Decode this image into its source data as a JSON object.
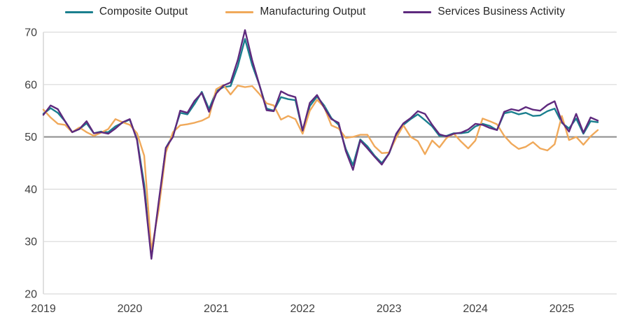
{
  "chart_data": {
    "type": "line",
    "title": "",
    "xlabel": "",
    "ylabel": "",
    "x_axis": {
      "labels": [
        "2019",
        "2020",
        "2021",
        "2022",
        "2023",
        "2024",
        "2025"
      ],
      "frequency": "monthly",
      "start": "2019-01",
      "end": "2025-06"
    },
    "y_axis": {
      "min": 20,
      "max": 70,
      "ticks": [
        20,
        30,
        40,
        50,
        60,
        70
      ],
      "reference_line": 50
    },
    "grid": "horizontal",
    "legend_position": "top",
    "colors": {
      "gridline": "#d9d9d9",
      "reference_line": "#8c8c8c",
      "axis_line": "#d9d9d9",
      "axis_text": "#404040"
    },
    "series": [
      {
        "name": "Composite Output",
        "color": "#1A7F8E",
        "values": [
          54.4,
          55.5,
          54.6,
          53.0,
          50.9,
          51.5,
          52.6,
          50.7,
          51.0,
          50.9,
          52.0,
          52.7,
          53.3,
          49.6,
          40.9,
          27.0,
          37.0,
          47.9,
          50.3,
          54.6,
          54.3,
          56.3,
          58.6,
          55.3,
          58.7,
          59.5,
          59.7,
          63.5,
          68.7,
          63.7,
          59.9,
          55.4,
          55.0,
          57.6,
          57.2,
          57.0,
          51.1,
          55.9,
          57.7,
          56.0,
          53.6,
          52.3,
          47.7,
          44.6,
          49.5,
          48.2,
          46.4,
          45.0,
          46.8,
          50.1,
          52.3,
          53.4,
          54.3,
          53.2,
          52.0,
          50.2,
          50.2,
          50.7,
          50.7,
          50.9,
          52.0,
          52.5,
          52.1,
          51.3,
          54.5,
          54.8,
          54.3,
          54.6,
          54.0,
          54.1,
          54.9,
          55.4,
          52.7,
          51.6,
          53.5,
          50.6,
          53.0,
          52.8
        ]
      },
      {
        "name": "Manufacturing Output",
        "color": "#F0A95A",
        "values": [
          55.2,
          53.7,
          52.5,
          52.3,
          50.9,
          51.8,
          50.9,
          50.2,
          50.8,
          51.5,
          53.4,
          52.8,
          52.3,
          50.7,
          46.4,
          28.3,
          36.0,
          47.0,
          50.9,
          52.2,
          52.4,
          52.7,
          53.1,
          53.8,
          59.1,
          59.9,
          58.1,
          59.8,
          59.5,
          59.7,
          58.2,
          56.4,
          56.0,
          53.3,
          54.0,
          53.4,
          50.6,
          55.0,
          57.1,
          55.7,
          52.2,
          51.6,
          49.8,
          50.0,
          50.4,
          50.4,
          48.2,
          46.9,
          47.0,
          49.8,
          52.2,
          50.0,
          49.2,
          46.7,
          49.3,
          48.0,
          49.8,
          50.6,
          49.1,
          47.8,
          49.3,
          53.5,
          53.0,
          52.4,
          50.2,
          48.7,
          47.7,
          48.1,
          49.0,
          47.8,
          47.4,
          48.6,
          54.0,
          49.4,
          50.0,
          48.5,
          50.1,
          51.3
        ]
      },
      {
        "name": "Services Business Activity",
        "color": "#5E2A7E",
        "values": [
          54.2,
          56.0,
          55.3,
          53.0,
          50.9,
          51.5,
          53.0,
          50.7,
          50.9,
          50.6,
          51.6,
          52.8,
          53.4,
          49.4,
          39.8,
          26.7,
          37.5,
          47.9,
          50.0,
          55.0,
          54.6,
          56.9,
          58.4,
          54.8,
          58.3,
          59.8,
          60.4,
          64.7,
          70.4,
          64.6,
          59.9,
          55.1,
          54.9,
          58.7,
          58.0,
          57.6,
          51.2,
          56.5,
          58.0,
          55.6,
          53.4,
          52.7,
          47.3,
          43.7,
          49.3,
          47.8,
          46.2,
          44.7,
          46.8,
          50.6,
          52.6,
          53.6,
          54.9,
          54.4,
          52.3,
          50.5,
          50.1,
          50.6,
          50.8,
          51.4,
          52.5,
          52.3,
          51.7,
          51.3,
          54.8,
          55.3,
          55.0,
          55.7,
          55.2,
          55.0,
          56.1,
          56.8,
          52.9,
          51.0,
          54.4,
          50.8,
          53.7,
          53.1
        ]
      }
    ]
  }
}
